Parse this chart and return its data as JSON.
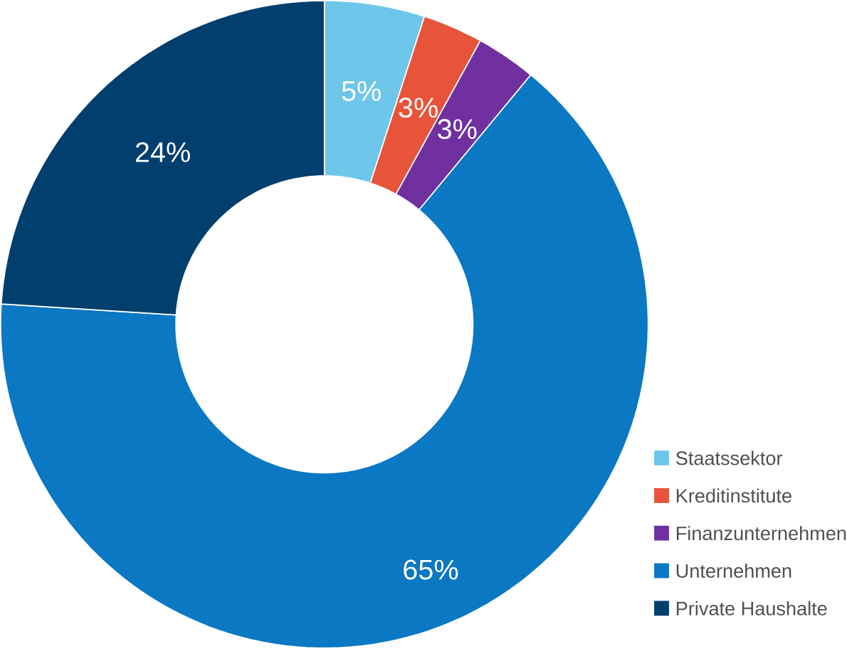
{
  "chart_data": {
    "type": "donut",
    "categories": [
      "Staatssektor",
      "Kreditinstitute",
      "Finanzunternehmen",
      "Unternehmen",
      "Private Haushalte"
    ],
    "values": [
      5,
      3,
      3,
      65,
      24
    ],
    "value_labels": [
      "5%",
      "3%",
      "3%",
      "65%",
      "24%"
    ],
    "colors": [
      "#6ec6ea",
      "#e8543a",
      "#7030a0",
      "#0a78c2",
      "#003f6e"
    ],
    "legend": "bottom right"
  }
}
